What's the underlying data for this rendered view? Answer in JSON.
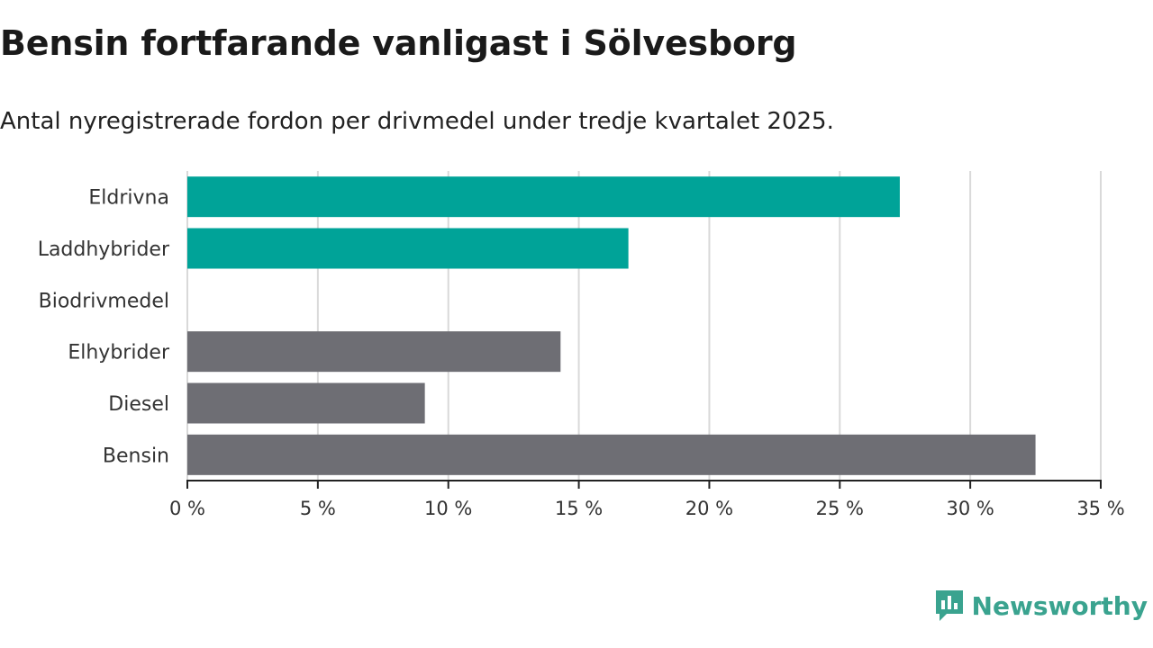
{
  "title": "Bensin fortfarande vanligast i Sölvesborg",
  "subtitle": "Antal nyregistrerade fordon per drivmedel under tredje kvartalet 2025.",
  "chart_data": {
    "type": "bar",
    "orientation": "horizontal",
    "categories": [
      "Eldrivna",
      "Laddhybrider",
      "Biodrivmedel",
      "Elhybrider",
      "Diesel",
      "Bensin"
    ],
    "values": [
      27.3,
      16.9,
      0,
      14.3,
      9.1,
      32.5
    ],
    "bar_colors": [
      "#00a398",
      "#00a398",
      "#00a398",
      "#6e6e74",
      "#6e6e74",
      "#6e6e74"
    ],
    "xlim": [
      0,
      35
    ],
    "xticks": [
      0,
      5,
      10,
      15,
      20,
      25,
      30,
      35
    ],
    "xtick_labels": [
      "0 %",
      "5 %",
      "10 %",
      "15 %",
      "20 %",
      "25 %",
      "30 %",
      "35 %"
    ],
    "xlabel": "",
    "ylabel": "",
    "grid": true
  },
  "brand": {
    "name": "Newsworthy",
    "logo_icon": "newsworthy-logo-icon",
    "color": "#3aa38f"
  }
}
